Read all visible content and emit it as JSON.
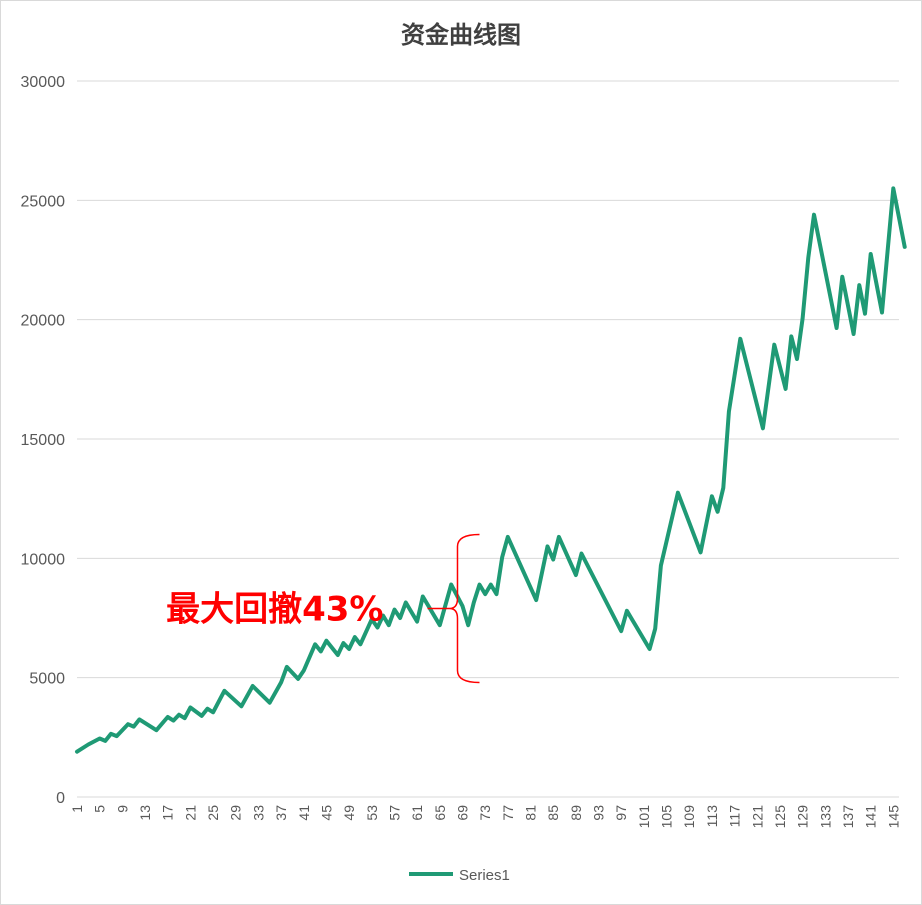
{
  "chart_data": {
    "type": "line",
    "title": "资金曲线图",
    "xlabel": "",
    "ylabel": "",
    "ylim": [
      0,
      30000
    ],
    "yticks": [
      0,
      5000,
      10000,
      15000,
      20000,
      25000,
      30000
    ],
    "xlim": [
      1,
      146
    ],
    "xticks": [
      1,
      5,
      9,
      13,
      17,
      21,
      25,
      29,
      33,
      37,
      41,
      45,
      49,
      53,
      57,
      61,
      65,
      69,
      73,
      77,
      81,
      85,
      89,
      93,
      97,
      101,
      105,
      109,
      113,
      117,
      121,
      125,
      129,
      133,
      137,
      141,
      145
    ],
    "grid": "horizontal",
    "legend_position": "bottom",
    "line_color": "#1f9a75",
    "annotation_color": "#ff0000",
    "annotation": {
      "text": "最大回撤43%",
      "from_value": 11000,
      "to_value": 4800,
      "at_x": 69
    },
    "series": [
      {
        "name": "Series1",
        "points": [
          [
            1,
            1900
          ],
          [
            3,
            2200
          ],
          [
            5,
            2450
          ],
          [
            6,
            2350
          ],
          [
            7,
            2650
          ],
          [
            8,
            2550
          ],
          [
            10,
            3050
          ],
          [
            11,
            2950
          ],
          [
            12,
            3250
          ],
          [
            15,
            2800
          ],
          [
            17,
            3350
          ],
          [
            18,
            3200
          ],
          [
            19,
            3450
          ],
          [
            20,
            3300
          ],
          [
            21,
            3750
          ],
          [
            23,
            3400
          ],
          [
            24,
            3700
          ],
          [
            25,
            3550
          ],
          [
            27,
            4450
          ],
          [
            30,
            3800
          ],
          [
            32,
            4650
          ],
          [
            35,
            3950
          ],
          [
            37,
            4800
          ],
          [
            38,
            5450
          ],
          [
            40,
            4950
          ],
          [
            41,
            5300
          ],
          [
            43,
            6400
          ],
          [
            44,
            6100
          ],
          [
            45,
            6550
          ],
          [
            47,
            5950
          ],
          [
            48,
            6450
          ],
          [
            49,
            6200
          ],
          [
            50,
            6700
          ],
          [
            51,
            6400
          ],
          [
            53,
            7450
          ],
          [
            54,
            7100
          ],
          [
            55,
            7600
          ],
          [
            56,
            7200
          ],
          [
            57,
            7850
          ],
          [
            58,
            7500
          ],
          [
            59,
            8150
          ],
          [
            61,
            7350
          ],
          [
            62,
            8400
          ],
          [
            65,
            7200
          ],
          [
            67,
            8900
          ],
          [
            69,
            8000
          ],
          [
            70,
            7200
          ],
          [
            71,
            8150
          ],
          [
            72,
            8900
          ],
          [
            73,
            8500
          ],
          [
            74,
            8900
          ],
          [
            75,
            8500
          ],
          [
            76,
            10050
          ],
          [
            77,
            10900
          ],
          [
            82,
            8250
          ],
          [
            84,
            10500
          ],
          [
            85,
            9950
          ],
          [
            86,
            10900
          ],
          [
            89,
            9300
          ],
          [
            90,
            10200
          ],
          [
            97,
            6950
          ],
          [
            98,
            7800
          ],
          [
            102,
            6200
          ],
          [
            103,
            7050
          ],
          [
            104,
            9700
          ],
          [
            107,
            12750
          ],
          [
            111,
            10250
          ],
          [
            113,
            12600
          ],
          [
            114,
            11950
          ],
          [
            115,
            12950
          ],
          [
            116,
            16150
          ],
          [
            118,
            19200
          ],
          [
            122,
            15450
          ],
          [
            124,
            18950
          ],
          [
            126,
            17100
          ],
          [
            127,
            19300
          ],
          [
            128,
            18350
          ],
          [
            129,
            20050
          ],
          [
            130,
            22600
          ],
          [
            131,
            24400
          ],
          [
            135,
            19650
          ],
          [
            136,
            21800
          ],
          [
            138,
            19400
          ],
          [
            139,
            21450
          ],
          [
            140,
            20250
          ],
          [
            141,
            22750
          ],
          [
            143,
            20300
          ],
          [
            145,
            25500
          ],
          [
            147,
            23050
          ]
        ]
      }
    ]
  },
  "legend": {
    "label": "Series1"
  }
}
